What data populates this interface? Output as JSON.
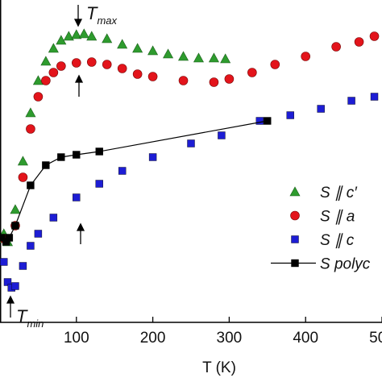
{
  "chart_data": {
    "type": "scatter",
    "x_label": "T (K)",
    "xlim": [
      0,
      500
    ],
    "ylim": [
      0,
      100
    ],
    "xticks": [
      100,
      200,
      300,
      400,
      500
    ],
    "annotations": [
      {
        "text": "T",
        "sub": "max"
      },
      {
        "text": "T",
        "sub": "min"
      }
    ],
    "legend": "right",
    "series": [
      {
        "name": "S ∥ c′",
        "marker": "triangle",
        "color": "#2e9b2e",
        "x": [
          2,
          5,
          10,
          20,
          30,
          40,
          50,
          60,
          70,
          80,
          90,
          100,
          110,
          120,
          140,
          160,
          180,
          200,
          220,
          240,
          260,
          280,
          295
        ],
        "values": [
          26,
          27.5,
          25,
          35,
          50,
          65,
          75,
          81,
          85,
          87.5,
          88.75,
          89.25,
          89.5,
          88.75,
          88,
          86.25,
          85,
          84.25,
          83.25,
          82.5,
          82,
          82,
          81.75
        ]
      },
      {
        "name": "S ∥ a",
        "marker": "circle",
        "color": "#e3141b",
        "x": [
          5,
          20,
          30,
          40,
          50,
          60,
          70,
          80,
          100,
          120,
          140,
          160,
          180,
          200,
          240,
          280,
          300,
          330,
          360,
          400,
          440,
          470,
          490
        ],
        "values": [
          26,
          30,
          45,
          60,
          70,
          75,
          77.5,
          79.5,
          80.5,
          80.75,
          80,
          78.75,
          77,
          76.25,
          75,
          74.5,
          75.5,
          77.5,
          80,
          82.5,
          85.5,
          87,
          88.75
        ]
      },
      {
        "name": "S ∥ c",
        "marker": "square",
        "color": "#1d1dd4",
        "x": [
          5,
          10,
          15,
          20,
          30,
          40,
          50,
          70,
          100,
          130,
          160,
          200,
          250,
          290,
          340,
          380,
          420,
          460,
          490
        ],
        "values": [
          18.75,
          12.5,
          10.75,
          11.25,
          17.5,
          23.75,
          27.5,
          32.5,
          38.75,
          43,
          47,
          51.25,
          55.5,
          58,
          62.5,
          64.25,
          66.25,
          68.75,
          70
        ]
      },
      {
        "name": "S polyc",
        "marker": "square-line",
        "color": "#000000",
        "x": [
          2,
          8,
          12,
          20,
          40,
          60,
          80,
          100,
          130,
          350
        ],
        "values": [
          26.25,
          25,
          26.25,
          30,
          42.5,
          48.75,
          51.25,
          52,
          53,
          62.5
        ]
      }
    ]
  }
}
